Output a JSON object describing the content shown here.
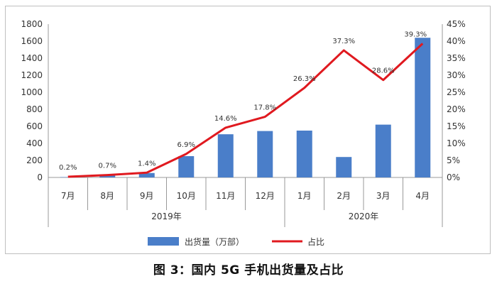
{
  "caption": "图 3：国内 5G 手机出货量及占比",
  "colors": {
    "bar": "#4a7ec9",
    "line": "#e0191f",
    "axis": "#999999",
    "text": "#333333"
  },
  "chart_data": {
    "type": "bar+line",
    "categories": [
      "7月",
      "8月",
      "9月",
      "10月",
      "11月",
      "12月",
      "1月",
      "2月",
      "3月",
      "4月"
    ],
    "groups": [
      {
        "label": "2019年",
        "from": 0,
        "to": 5
      },
      {
        "label": "2020年",
        "from": 6,
        "to": 9
      }
    ],
    "series": [
      {
        "name": "出货量（万部）",
        "type": "bar",
        "axis": "left",
        "values": [
          4,
          25,
          52,
          250,
          507,
          545,
          550,
          240,
          620,
          1640
        ]
      },
      {
        "name": "占比",
        "type": "line",
        "axis": "right",
        "values": [
          0.2,
          0.7,
          1.4,
          6.9,
          14.6,
          17.8,
          26.3,
          37.3,
          28.6,
          39.3
        ],
        "labels": [
          "0.2%",
          "0.7%",
          "1.4%",
          "6.9%",
          "14.6%",
          "17.8%",
          "26.3%",
          "37.3%",
          "28.6%",
          "39.3%"
        ]
      }
    ],
    "yleft": {
      "range": [
        0,
        1800
      ],
      "ticks": [
        "0",
        "200",
        "400",
        "600",
        "800",
        "1000",
        "1200",
        "1400",
        "1600",
        "1800"
      ]
    },
    "yright": {
      "range": [
        0,
        45
      ],
      "ticks": [
        "0%",
        "5%",
        "10%",
        "15%",
        "20%",
        "25%",
        "30%",
        "35%",
        "40%",
        "45%"
      ]
    },
    "legend": {
      "position": "bottom",
      "items": [
        "出货量（万部）",
        "占比"
      ]
    }
  }
}
